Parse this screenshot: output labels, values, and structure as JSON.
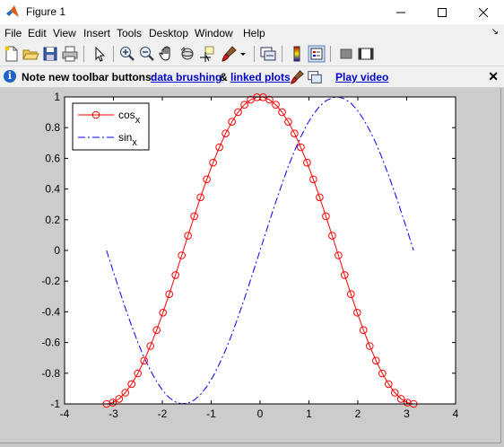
{
  "window": {
    "title": "Figure 1"
  },
  "menu": [
    "File",
    "Edit",
    "View",
    "Insert",
    "Tools",
    "Desktop",
    "Window",
    "Help"
  ],
  "toolbar_icons": [
    "new-figure-icon",
    "open-file-icon",
    "save-icon",
    "print-icon",
    "edit-plot-icon",
    "zoom-in-icon",
    "zoom-out-icon",
    "pan-icon",
    "rotate-3d-icon",
    "data-cursor-icon",
    "brush-icon",
    "brush-dropdown-icon",
    "link-plot-icon",
    "insert-colorbar-icon",
    "insert-legend-icon",
    "hide-plot-tools-icon",
    "show-plot-tools-icon"
  ],
  "infobar": {
    "prefix": "Note new toolbar buttons:",
    "link1": "data brushing",
    "amp": "&",
    "link2": "linked plots",
    "video": "Play video"
  },
  "chart_data": {
    "type": "line",
    "xlim": [
      -4,
      4
    ],
    "ylim": [
      -1,
      1
    ],
    "xticks": [
      "-4",
      "-3",
      "-2",
      "-1",
      "0",
      "1",
      "2",
      "3",
      "4"
    ],
    "yticks": [
      "-1",
      "-0.8",
      "-0.6",
      "-0.4",
      "-0.2",
      "0",
      "0.2",
      "0.4",
      "0.6",
      "0.8",
      "1"
    ],
    "legend_position": "top-left",
    "grid": false,
    "colors": {
      "cos": "#ff0000",
      "sin": "#0000ff"
    },
    "series": [
      {
        "name": "cos",
        "name_sub": "x",
        "style": "solid line with circle markers",
        "x": [
          -3.1416,
          -3.0134,
          -2.8851,
          -2.7569,
          -2.6287,
          -2.5005,
          -2.3722,
          -2.244,
          -2.1158,
          -1.9875,
          -1.8593,
          -1.7311,
          -1.6029,
          -1.4746,
          -1.3464,
          -1.2182,
          -1.09,
          -0.9617,
          -0.8335,
          -0.7053,
          -0.577,
          -0.4488,
          -0.3206,
          -0.1924,
          -0.0641,
          0.0641,
          0.1924,
          0.3206,
          0.4488,
          0.577,
          0.7053,
          0.8335,
          0.9617,
          1.09,
          1.2182,
          1.3464,
          1.4746,
          1.6029,
          1.7311,
          1.8593,
          1.9875,
          2.1158,
          2.244,
          2.3722,
          2.5005,
          2.6287,
          2.7569,
          2.8851,
          3.0134,
          3.1416
        ],
        "y": [
          -1.0,
          -0.992,
          -0.967,
          -0.927,
          -0.871,
          -0.801,
          -0.718,
          -0.623,
          -0.519,
          -0.405,
          -0.285,
          -0.16,
          -0.032,
          0.096,
          0.223,
          0.346,
          0.463,
          0.572,
          0.672,
          0.762,
          0.838,
          0.901,
          0.949,
          0.982,
          0.998,
          0.998,
          0.982,
          0.949,
          0.901,
          0.838,
          0.762,
          0.672,
          0.572,
          0.463,
          0.346,
          0.223,
          0.096,
          -0.032,
          -0.16,
          -0.285,
          -0.405,
          -0.519,
          -0.623,
          -0.718,
          -0.801,
          -0.871,
          -0.927,
          -0.967,
          -0.992,
          -1.0
        ]
      },
      {
        "name": "sin",
        "name_sub": "x",
        "style": "dash-dot line",
        "x": [
          -3.1416,
          -3.0134,
          -2.8851,
          -2.7569,
          -2.6287,
          -2.5005,
          -2.3722,
          -2.244,
          -2.1158,
          -1.9875,
          -1.8593,
          -1.7311,
          -1.6029,
          -1.4746,
          -1.3464,
          -1.2182,
          -1.09,
          -0.9617,
          -0.8335,
          -0.7053,
          -0.577,
          -0.4488,
          -0.3206,
          -0.1924,
          -0.0641,
          0.0641,
          0.1924,
          0.3206,
          0.4488,
          0.577,
          0.7053,
          0.8335,
          0.9617,
          1.09,
          1.2182,
          1.3464,
          1.4746,
          1.6029,
          1.7311,
          1.8593,
          1.9875,
          2.1158,
          2.244,
          2.3722,
          2.5005,
          2.6287,
          2.7569,
          2.8851,
          3.0134,
          3.1416
        ],
        "y": [
          0.0,
          -0.128,
          -0.254,
          -0.375,
          -0.49,
          -0.599,
          -0.697,
          -0.782,
          -0.855,
          -0.915,
          -0.959,
          -0.987,
          -1.0,
          -0.995,
          -0.975,
          -0.939,
          -0.887,
          -0.821,
          -0.74,
          -0.648,
          -0.546,
          -0.434,
          -0.315,
          -0.191,
          -0.064,
          0.064,
          0.191,
          0.315,
          0.434,
          0.546,
          0.648,
          0.74,
          0.821,
          0.887,
          0.939,
          0.975,
          0.995,
          1.0,
          0.987,
          0.959,
          0.915,
          0.855,
          0.782,
          0.697,
          0.599,
          0.49,
          0.375,
          0.254,
          0.128,
          0.0
        ]
      }
    ]
  }
}
